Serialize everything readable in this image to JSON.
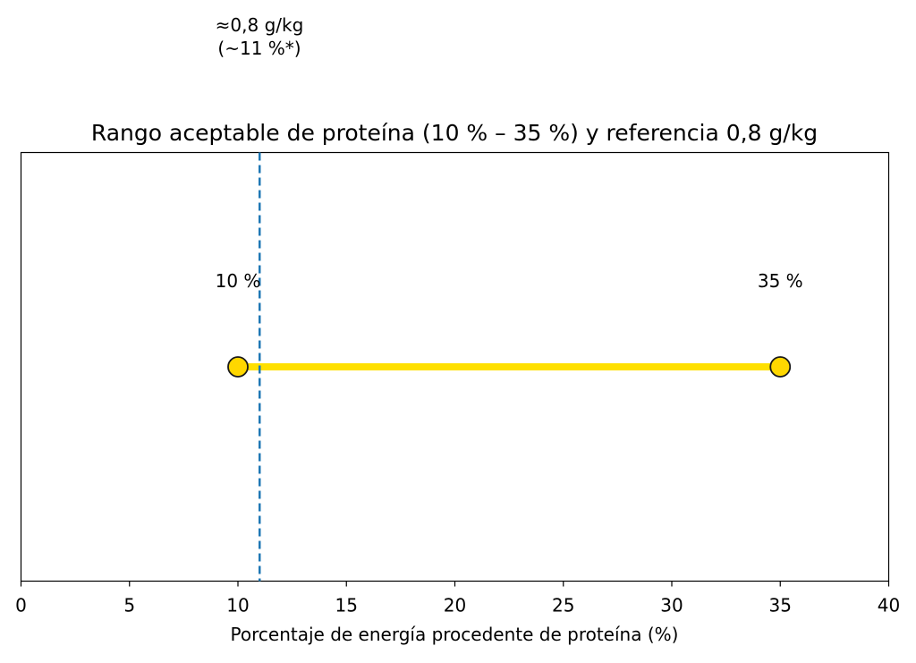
{
  "chart_data": {
    "type": "line",
    "title": "Rango aceptable de proteína (10 % – 35 %) y referencia 0,8 g/kg",
    "xlabel": "Porcentaje de energía procedente de proteína (%)",
    "ylabel": "",
    "xlim": [
      0,
      40
    ],
    "ylim": [
      -1,
      1
    ],
    "xticks": [
      0,
      5,
      10,
      15,
      20,
      25,
      30,
      35,
      40
    ],
    "xtick_labels": [
      "0",
      "5",
      "10",
      "15",
      "20",
      "25",
      "30",
      "35",
      "40"
    ],
    "grid": false,
    "range": {
      "start": 10,
      "end": 35,
      "y": 0,
      "color": "#FFE000",
      "marker_color": "#FFD700",
      "marker_edge_color": "#1a1a1a"
    },
    "endpoint_labels": [
      {
        "x": 10,
        "text": "10 %"
      },
      {
        "x": 35,
        "text": "35 %"
      }
    ],
    "reference_line": {
      "x": 11,
      "style": "dashed",
      "color": "#1f77b4",
      "annotation_line1": "≈0,8 g/kg",
      "annotation_line2": "(~11 %*)"
    }
  }
}
